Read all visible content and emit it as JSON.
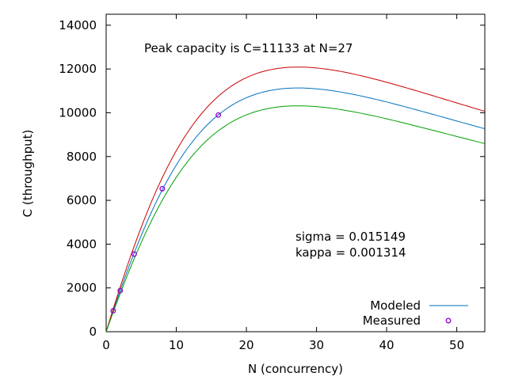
{
  "chart_data": {
    "type": "line",
    "xlabel": "N (concurrency)",
    "ylabel": "C (throughput)",
    "xlim": [
      0,
      54
    ],
    "ylim": [
      0,
      14500
    ],
    "x_ticks": [
      0,
      10,
      20,
      30,
      40,
      50
    ],
    "y_ticks": [
      0,
      2000,
      4000,
      6000,
      8000,
      10000,
      12000,
      14000
    ],
    "grid": false,
    "legend_placement": "bottom-right",
    "annotations": {
      "peak": "Peak capacity is C=11133 at N=27",
      "sigma": "sigma = 0.015149",
      "kappa": "kappa = 0.001314"
    },
    "model": {
      "lambda": 955,
      "sigma": 0.015149,
      "kappa": 0.001314
    },
    "series": [
      {
        "name": "Modeled",
        "style": "line",
        "color": "#0072bd",
        "lambda": 955
      },
      {
        "name": "",
        "style": "line",
        "color": "#cc0000",
        "lambda": 1037
      },
      {
        "name": "",
        "style": "line",
        "color": "#00a000",
        "lambda": 885
      },
      {
        "name": "Measured",
        "style": "points",
        "color": "#9400d3",
        "x": [
          1,
          2,
          4,
          8,
          16
        ],
        "y": [
          955,
          1878,
          3548,
          6531,
          9897
        ]
      }
    ]
  }
}
